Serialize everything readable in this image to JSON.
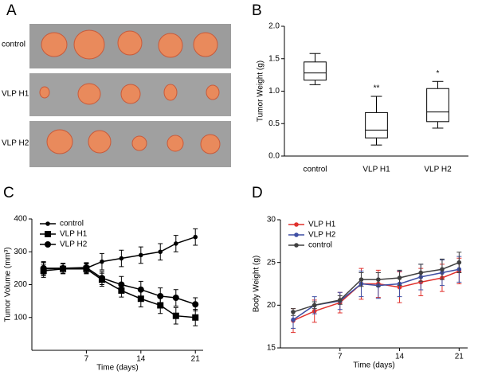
{
  "panel_labels": [
    "A",
    "B",
    "C",
    "D"
  ],
  "photo": {
    "rows": [
      "control",
      "VLP H1",
      "VLP H2"
    ]
  },
  "chart_data": [
    {
      "type": "box",
      "ylabel": "Tumor Weight (g)",
      "categories": [
        "control",
        "VLP H1",
        "VLP H2"
      ],
      "boxes": [
        {
          "min": 1.1,
          "q1": 1.17,
          "median": 1.28,
          "q3": 1.45,
          "max": 1.58
        },
        {
          "min": 0.17,
          "q1": 0.28,
          "median": 0.4,
          "q3": 0.67,
          "max": 0.92
        },
        {
          "min": 0.43,
          "q1": 0.53,
          "median": 0.68,
          "q3": 1.04,
          "max": 1.15
        }
      ],
      "annotations": [
        "",
        "**",
        "*"
      ],
      "ylim": [
        0,
        2
      ],
      "yticks": [
        {
          "value": 0,
          "label": "0.0"
        },
        0.5,
        {
          "value": 1,
          "label": "1.0"
        },
        1.5,
        {
          "value": 2,
          "label": "2.0"
        }
      ]
    },
    {
      "type": "line",
      "xlabel": "Time (days)",
      "ylabel": "Tumor Volume (mm³)",
      "x": [
        1.5,
        4,
        7,
        9,
        11.5,
        14,
        16.5,
        18.5,
        21
      ],
      "series": [
        {
          "name": "control",
          "color": "#000000",
          "marker": "dot",
          "values": [
            248,
            250,
            250,
            270,
            280,
            290,
            300,
            325,
            345
          ],
          "errors": [
            20,
            15,
            15,
            25,
            25,
            25,
            25,
            25,
            25
          ]
        },
        {
          "name": "VLP H1",
          "color": "#000000",
          "marker": "square",
          "values": [
            242,
            248,
            248,
            215,
            182,
            157,
            137,
            105,
            100
          ],
          "errors": [
            20,
            15,
            15,
            20,
            20,
            25,
            25,
            25,
            25
          ]
        },
        {
          "name": "VLP H2",
          "color": "#000000",
          "marker": "circle",
          "values": [
            250,
            250,
            252,
            220,
            200,
            185,
            165,
            160,
            140
          ],
          "errors": [
            20,
            15,
            15,
            20,
            25,
            25,
            25,
            25,
            20
          ]
        }
      ],
      "xlim": [
        0,
        22
      ],
      "xticks": [
        7,
        14,
        21
      ],
      "ylim": [
        0,
        400
      ],
      "yticks": [
        100,
        200,
        300,
        400
      ],
      "legend": "upper left"
    },
    {
      "type": "line",
      "xlabel": "Time (days)",
      "ylabel": "Body Weight (g)",
      "x": [
        1.5,
        4,
        7,
        9.5,
        11.5,
        14,
        16.5,
        19,
        21
      ],
      "series": [
        {
          "name": "VLP H1",
          "color": "#e0312d",
          "marker": "dot",
          "values": [
            18.2,
            19.3,
            20.3,
            22.5,
            22.5,
            22.1,
            22.7,
            23.2,
            24
          ],
          "errors": [
            1.4,
            1.3,
            1.2,
            1.8,
            1.6,
            1.8,
            1.6,
            1.6,
            1.5
          ]
        },
        {
          "name": "VLP H2",
          "color": "#3f4fa4",
          "marker": "dot",
          "values": [
            18.3,
            20,
            20.5,
            22.5,
            22.3,
            22.5,
            23.3,
            23.8,
            24.2
          ],
          "errors": [
            1,
            1,
            1,
            1.5,
            1.5,
            1.5,
            1.5,
            1.5,
            1.5
          ]
        },
        {
          "name": "control",
          "color": "#404040",
          "marker": "dot",
          "values": [
            19.2,
            20,
            20.6,
            23,
            23,
            23.2,
            23.8,
            24.2,
            25
          ],
          "errors": [
            0.4,
            0.4,
            0.5,
            0.8,
            0.8,
            0.9,
            1,
            1.2,
            1.2
          ]
        }
      ],
      "xlim": [
        0,
        22
      ],
      "xticks": [
        7,
        14,
        21
      ],
      "ylim": [
        15,
        30
      ],
      "yticks": [
        15,
        20,
        25,
        30
      ],
      "legend": "upper left"
    }
  ]
}
